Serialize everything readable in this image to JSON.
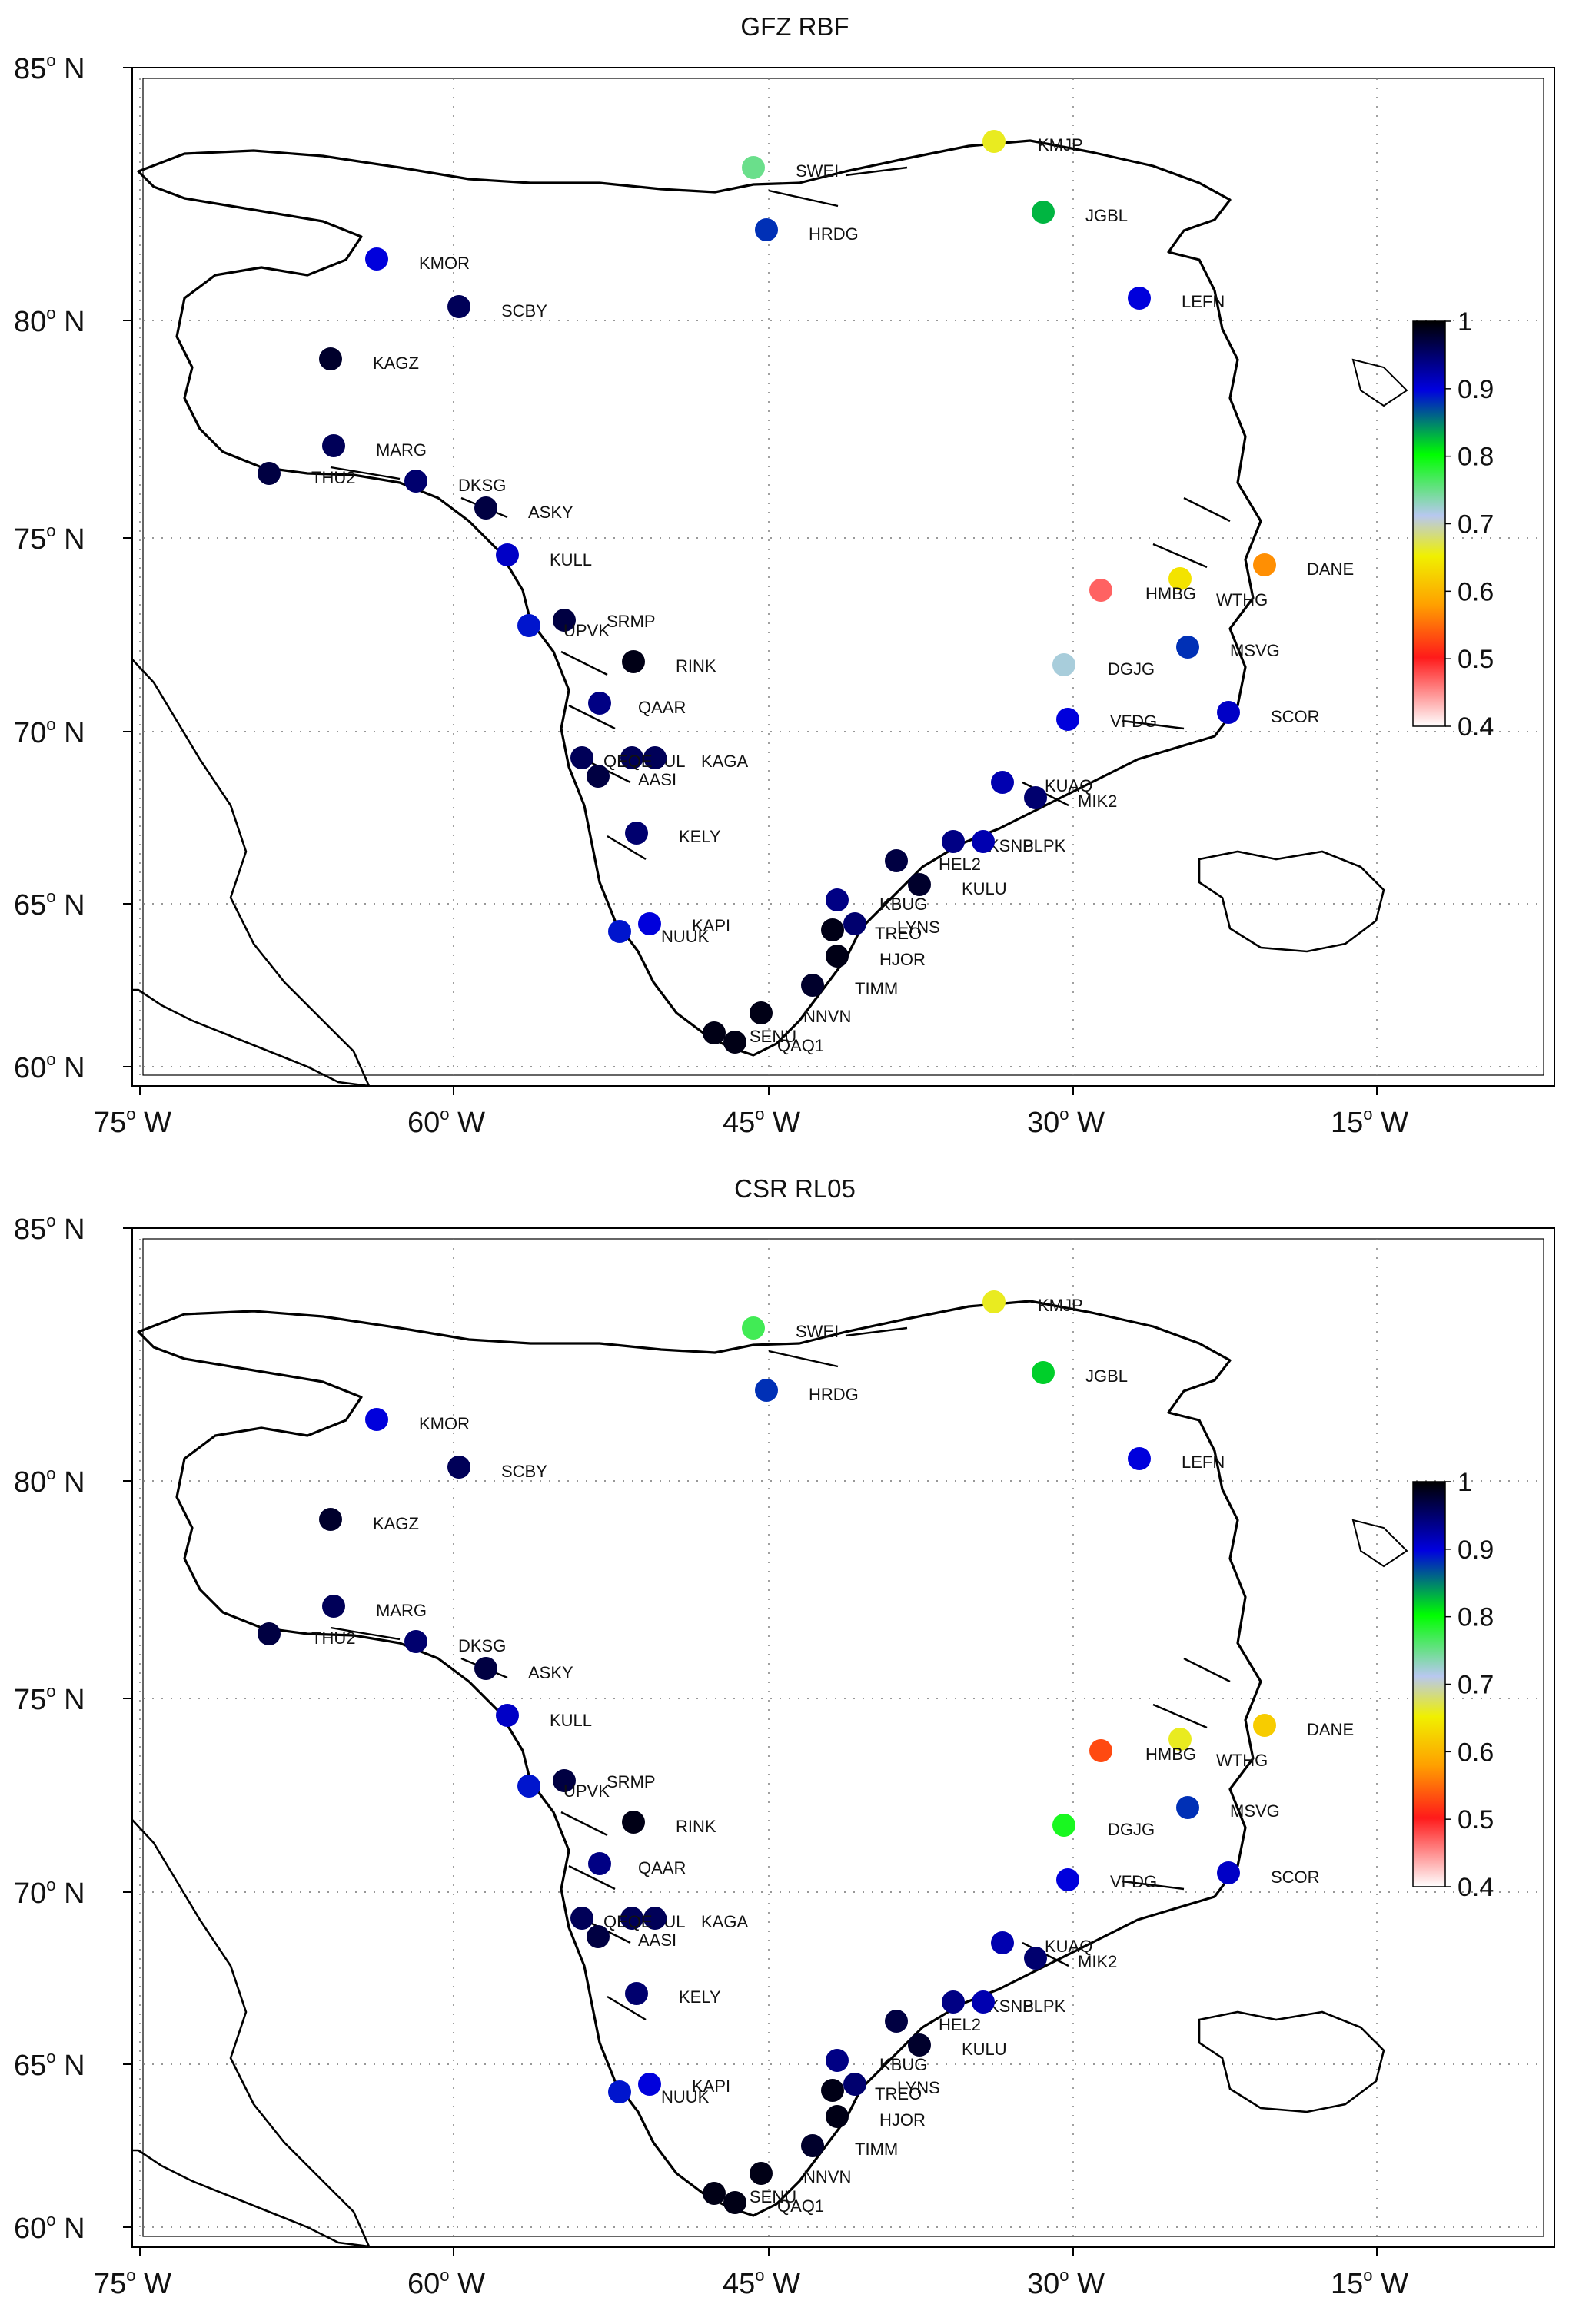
{
  "maps": [
    {
      "title": "GFZ RBF",
      "stations": [
        {
          "code": "KMJP",
          "value": 0.66
        },
        {
          "code": "SWEI",
          "value": 0.75
        },
        {
          "code": "HRDG",
          "value": 0.88
        },
        {
          "code": "JGBL",
          "value": 0.83
        },
        {
          "code": "KMOR",
          "value": 0.9
        },
        {
          "code": "SCBY",
          "value": 0.96
        },
        {
          "code": "LEFN",
          "value": 0.9
        },
        {
          "code": "KAGZ",
          "value": 0.98
        },
        {
          "code": "MARG",
          "value": 0.96
        },
        {
          "code": "THU2",
          "value": 0.97
        },
        {
          "code": "DKSG",
          "value": 0.95
        },
        {
          "code": "ASKY",
          "value": 0.97
        },
        {
          "code": "KULL",
          "value": 0.91
        },
        {
          "code": "SRMP",
          "value": 0.97
        },
        {
          "code": "UPVK",
          "value": 0.89
        },
        {
          "code": "RINK",
          "value": 0.99
        },
        {
          "code": "DANE",
          "value": 0.57
        },
        {
          "code": "WTHG",
          "value": 0.64
        },
        {
          "code": "HMBG",
          "value": 0.47
        },
        {
          "code": "MSVG",
          "value": 0.88
        },
        {
          "code": "DGJG",
          "value": 0.72
        },
        {
          "code": "QAAR",
          "value": 0.94
        },
        {
          "code": "SCOR",
          "value": 0.91
        },
        {
          "code": "VFDG",
          "value": 0.9
        },
        {
          "code": "ILUL",
          "value": 0.96
        },
        {
          "code": "KAGA",
          "value": 0.96
        },
        {
          "code": "QEQE",
          "value": 0.96
        },
        {
          "code": "AASI",
          "value": 0.97
        },
        {
          "code": "KUAQ",
          "value": 0.92
        },
        {
          "code": "MIK2",
          "value": 0.95
        },
        {
          "code": "KELY",
          "value": 0.95
        },
        {
          "code": "KSNB",
          "value": 0.94
        },
        {
          "code": "PLPK",
          "value": 0.92
        },
        {
          "code": "HEL2",
          "value": 0.97
        },
        {
          "code": "KULU",
          "value": 0.98
        },
        {
          "code": "KBUG",
          "value": 0.94
        },
        {
          "code": "NUUK",
          "value": 0.89
        },
        {
          "code": "KAPI",
          "value": 0.9
        },
        {
          "code": "LYNS",
          "value": 0.95
        },
        {
          "code": "TREO",
          "value": 0.99
        },
        {
          "code": "HJOR",
          "value": 0.99
        },
        {
          "code": "TIMM",
          "value": 0.98
        },
        {
          "code": "NNVN",
          "value": 0.99
        },
        {
          "code": "SENU",
          "value": 0.99
        },
        {
          "code": "QAQ1",
          "value": 0.99
        }
      ]
    },
    {
      "title": "CSR RL05",
      "stations": [
        {
          "code": "KMJP",
          "value": 0.66
        },
        {
          "code": "SWEI",
          "value": 0.77
        },
        {
          "code": "HRDG",
          "value": 0.88
        },
        {
          "code": "JGBL",
          "value": 0.82
        },
        {
          "code": "KMOR",
          "value": 0.9
        },
        {
          "code": "SCBY",
          "value": 0.96
        },
        {
          "code": "LEFN",
          "value": 0.9
        },
        {
          "code": "KAGZ",
          "value": 0.98
        },
        {
          "code": "MARG",
          "value": 0.96
        },
        {
          "code": "THU2",
          "value": 0.97
        },
        {
          "code": "DKSG",
          "value": 0.95
        },
        {
          "code": "ASKY",
          "value": 0.97
        },
        {
          "code": "KULL",
          "value": 0.91
        },
        {
          "code": "SRMP",
          "value": 0.97
        },
        {
          "code": "UPVK",
          "value": 0.89
        },
        {
          "code": "RINK",
          "value": 0.99
        },
        {
          "code": "DANE",
          "value": 0.62
        },
        {
          "code": "WTHG",
          "value": 0.66
        },
        {
          "code": "HMBG",
          "value": 0.53
        },
        {
          "code": "MSVG",
          "value": 0.88
        },
        {
          "code": "DGJG",
          "value": 0.79
        },
        {
          "code": "QAAR",
          "value": 0.94
        },
        {
          "code": "SCOR",
          "value": 0.91
        },
        {
          "code": "VFDG",
          "value": 0.9
        },
        {
          "code": "ILUL",
          "value": 0.96
        },
        {
          "code": "KAGA",
          "value": 0.96
        },
        {
          "code": "QEQE",
          "value": 0.96
        },
        {
          "code": "AASI",
          "value": 0.97
        },
        {
          "code": "KUAQ",
          "value": 0.92
        },
        {
          "code": "MIK2",
          "value": 0.95
        },
        {
          "code": "KELY",
          "value": 0.95
        },
        {
          "code": "KSNB",
          "value": 0.94
        },
        {
          "code": "PLPK",
          "value": 0.92
        },
        {
          "code": "HEL2",
          "value": 0.97
        },
        {
          "code": "KULU",
          "value": 0.98
        },
        {
          "code": "KBUG",
          "value": 0.94
        },
        {
          "code": "NUUK",
          "value": 0.89
        },
        {
          "code": "KAPI",
          "value": 0.9
        },
        {
          "code": "LYNS",
          "value": 0.95
        },
        {
          "code": "TREO",
          "value": 0.99
        },
        {
          "code": "HJOR",
          "value": 0.99
        },
        {
          "code": "TIMM",
          "value": 0.98
        },
        {
          "code": "NNVN",
          "value": 0.99
        },
        {
          "code": "SENU",
          "value": 0.99
        },
        {
          "code": "QAQ1",
          "value": 0.99
        }
      ]
    }
  ],
  "lat_ticks": [
    "85",
    "80",
    "75",
    "70",
    "65",
    "60"
  ],
  "lat_suffix": "N",
  "lon_ticks": [
    "75",
    "60",
    "45",
    "30",
    "15"
  ],
  "lon_suffix": "W",
  "degree_symbol": "o",
  "colorbar": {
    "ticks": [
      "1",
      "0.9",
      "0.8",
      "0.7",
      "0.6",
      "0.5",
      "0.4"
    ],
    "range": [
      0.4,
      1.0
    ]
  }
}
